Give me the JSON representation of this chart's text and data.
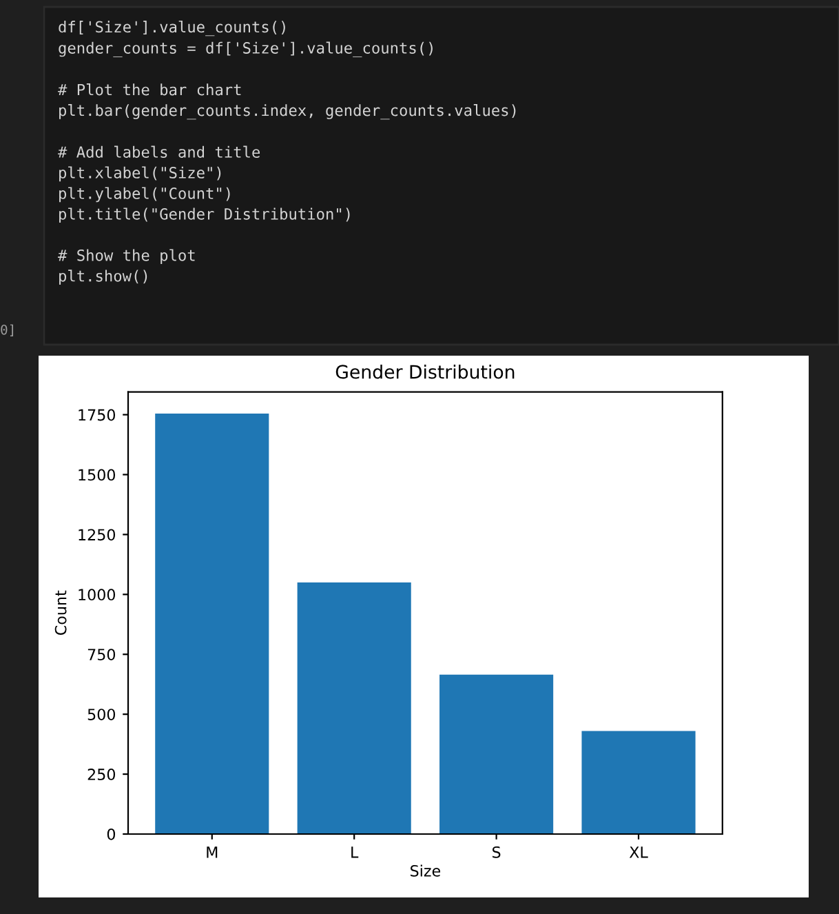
{
  "chart_data": {
    "type": "bar",
    "title": "Gender Distribution",
    "xlabel": "Size",
    "ylabel": "Count",
    "categories": [
      "M",
      "L",
      "S",
      "XL"
    ],
    "values": [
      1755,
      1050,
      665,
      430
    ],
    "color": "#1f77b4",
    "ylim": [
      0,
      1845
    ],
    "yticks": [
      0,
      250,
      500,
      750,
      1000,
      1250,
      1500,
      1750
    ],
    "grid": false,
    "annotations": [
      "df['Size'].value_counts()\ngender_counts = df['Size'].value_counts()\n\n# Plot the bar chart\nplt.bar(gender_counts.index, gender_counts.values)\n\n# Add labels and title\nplt.xlabel(\"Size\")\nplt.ylabel(\"Count\")\nplt.title(\"Gender Distribution\")\n\n# Show the plot\nplt.show()",
      "0]"
    ]
  }
}
